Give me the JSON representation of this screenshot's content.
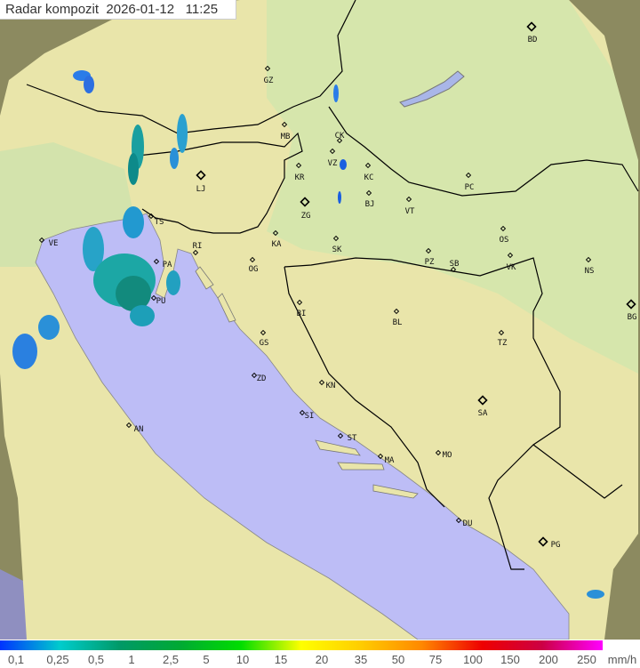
{
  "title": {
    "label": "Radar kompozit",
    "date": "2026-01-12",
    "time": "11:25"
  },
  "colors": {
    "sea": "#bdbdf6",
    "land": "#e9e5aa",
    "plains": "#d6e6ac",
    "outside": "#8c8a60",
    "border": "#000000"
  },
  "cities": [
    {
      "code": "BD",
      "size": "large"
    },
    {
      "code": "GZ",
      "size": "small"
    },
    {
      "code": "MB",
      "size": "small"
    },
    {
      "code": "CK",
      "size": "small"
    },
    {
      "code": "VZ",
      "size": "small"
    },
    {
      "code": "KR",
      "size": "small"
    },
    {
      "code": "KC",
      "size": "small"
    },
    {
      "code": "LJ",
      "size": "large"
    },
    {
      "code": "ZG",
      "size": "large"
    },
    {
      "code": "BJ",
      "size": "small"
    },
    {
      "code": "VT",
      "size": "small"
    },
    {
      "code": "PC",
      "size": "small"
    },
    {
      "code": "TS",
      "size": "small"
    },
    {
      "code": "VE",
      "size": "small"
    },
    {
      "code": "RI",
      "size": "small"
    },
    {
      "code": "KA",
      "size": "small"
    },
    {
      "code": "SK",
      "size": "small"
    },
    {
      "code": "OS",
      "size": "small"
    },
    {
      "code": "PZ",
      "size": "small"
    },
    {
      "code": "SB",
      "size": "small"
    },
    {
      "code": "VK",
      "size": "small"
    },
    {
      "code": "NS",
      "size": "small"
    },
    {
      "code": "PA",
      "size": "small"
    },
    {
      "code": "OG",
      "size": "small"
    },
    {
      "code": "BG",
      "size": "large"
    },
    {
      "code": "PU",
      "size": "small"
    },
    {
      "code": "BI",
      "size": "small"
    },
    {
      "code": "BL",
      "size": "small"
    },
    {
      "code": "GS",
      "size": "small"
    },
    {
      "code": "TZ",
      "size": "small"
    },
    {
      "code": "ZD",
      "size": "small"
    },
    {
      "code": "KN",
      "size": "small"
    },
    {
      "code": "SA",
      "size": "large"
    },
    {
      "code": "SI",
      "size": "small"
    },
    {
      "code": "AN",
      "size": "small"
    },
    {
      "code": "ST",
      "size": "small"
    },
    {
      "code": "MO",
      "size": "small"
    },
    {
      "code": "MA",
      "size": "small"
    },
    {
      "code": "DU",
      "size": "small"
    },
    {
      "code": "PG",
      "size": "large"
    }
  ],
  "legend": {
    "values": [
      "0,1",
      "0,25",
      "0,5",
      "1",
      "2,5",
      "5",
      "10",
      "15",
      "20",
      "35",
      "50",
      "75",
      "100",
      "150",
      "200",
      "250"
    ],
    "unit": "mm/h",
    "gradient": [
      "#0033ff",
      "#00cccc",
      "#009966",
      "#00aa33",
      "#00dd00",
      "#ffff00",
      "#ffcc00",
      "#ff8800",
      "#ee0000",
      "#cc0044",
      "#ff00ff"
    ]
  }
}
